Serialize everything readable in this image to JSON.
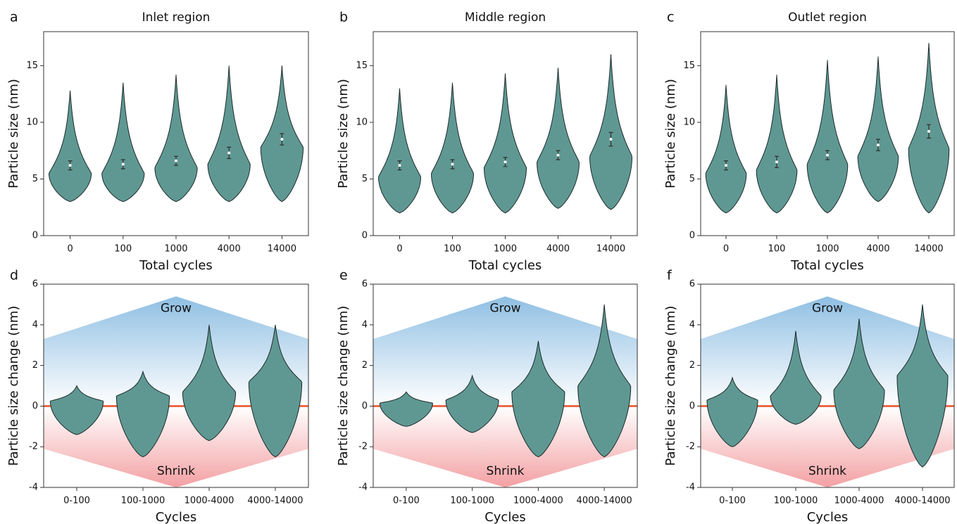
{
  "chart_data": [
    {
      "type": "violin",
      "panel": "a",
      "title": "Inlet region",
      "xlabel": "Total cycles",
      "ylabel": "Particle size (nm)",
      "color": "#5f9893",
      "categories": [
        "0",
        "100",
        "1000",
        "4000",
        "14000"
      ],
      "ylim": [
        0,
        18
      ],
      "yticks": [
        0,
        5,
        10,
        15
      ],
      "violins": [
        {
          "min": 3,
          "max": 12.8,
          "mode": 5.5,
          "mean": 6.2,
          "err": 0.4
        },
        {
          "min": 3,
          "max": 13.5,
          "mode": 5.5,
          "mean": 6.3,
          "err": 0.4
        },
        {
          "min": 3,
          "max": 14.2,
          "mode": 6,
          "mean": 6.6,
          "err": 0.4
        },
        {
          "min": 3,
          "max": 15,
          "mode": 6.3,
          "mean": 7.3,
          "err": 0.5
        },
        {
          "min": 3,
          "max": 15,
          "mode": 7.8,
          "mean": 8.5,
          "err": 0.5
        }
      ]
    },
    {
      "type": "violin",
      "panel": "b",
      "title": "Middle region",
      "xlabel": "Total cycles",
      "ylabel": "Particle size (nm)",
      "color": "#5f9893",
      "categories": [
        "0",
        "100",
        "1000",
        "4000",
        "14000"
      ],
      "ylim": [
        0,
        18
      ],
      "yticks": [
        0,
        5,
        10,
        15
      ],
      "violins": [
        {
          "min": 2,
          "max": 13,
          "mode": 5.2,
          "mean": 6.2,
          "err": 0.4
        },
        {
          "min": 2,
          "max": 13.5,
          "mode": 5.5,
          "mean": 6.3,
          "err": 0.4
        },
        {
          "min": 2,
          "max": 14.3,
          "mode": 6,
          "mean": 6.5,
          "err": 0.4
        },
        {
          "min": 2.4,
          "max": 14.8,
          "mode": 6.5,
          "mean": 7.1,
          "err": 0.4
        },
        {
          "min": 2.3,
          "max": 16,
          "mode": 7,
          "mean": 8.5,
          "err": 0.6
        }
      ]
    },
    {
      "type": "violin",
      "panel": "c",
      "title": "Outlet region",
      "xlabel": "Total cycles",
      "ylabel": "Particle size (nm)",
      "color": "#5f9893",
      "categories": [
        "0",
        "100",
        "1000",
        "4000",
        "14000"
      ],
      "ylim": [
        0,
        18
      ],
      "yticks": [
        0,
        5,
        10,
        15
      ],
      "violins": [
        {
          "min": 2,
          "max": 13.3,
          "mode": 5.5,
          "mean": 6.2,
          "err": 0.4
        },
        {
          "min": 2,
          "max": 14.2,
          "mode": 5.8,
          "mean": 6.5,
          "err": 0.5
        },
        {
          "min": 2,
          "max": 15.5,
          "mode": 6.3,
          "mean": 7.1,
          "err": 0.4
        },
        {
          "min": 3,
          "max": 15.8,
          "mode": 7,
          "mean": 8,
          "err": 0.5
        },
        {
          "min": 2,
          "max": 17,
          "mode": 7.7,
          "mean": 9.2,
          "err": 0.6
        }
      ]
    },
    {
      "type": "violin",
      "panel": "d",
      "xlabel": "Cycles",
      "ylabel": "Particle size change (nm)",
      "color": "#5f9893",
      "zero_line_color": "#e8522a",
      "grow_label": "Grow",
      "shrink_label": "Shrink",
      "categories": [
        "0-100",
        "100-1000",
        "1000-4000",
        "4000-14000"
      ],
      "ylim": [
        -4,
        6
      ],
      "yticks": [
        -4,
        -2,
        0,
        2,
        4,
        6
      ],
      "violins": [
        {
          "min": -1.4,
          "max": 1,
          "mode": 0.25
        },
        {
          "min": -2.5,
          "max": 1.7,
          "mode": 0.5
        },
        {
          "min": -1.7,
          "max": 4,
          "mode": 0.7
        },
        {
          "min": -2.5,
          "max": 4,
          "mode": 1.2
        }
      ]
    },
    {
      "type": "violin",
      "panel": "e",
      "xlabel": "Cycles",
      "ylabel": "Particle size change (nm)",
      "color": "#5f9893",
      "zero_line_color": "#e8522a",
      "grow_label": "Grow",
      "shrink_label": "Shrink",
      "categories": [
        "0-100",
        "100-1000",
        "1000-4000",
        "4000-14000"
      ],
      "ylim": [
        -4,
        6
      ],
      "yticks": [
        -4,
        -2,
        0,
        2,
        4,
        6
      ],
      "violins": [
        {
          "min": -1,
          "max": 0.7,
          "mode": 0.15
        },
        {
          "min": -1.3,
          "max": 1.5,
          "mode": 0.3
        },
        {
          "min": -2.5,
          "max": 3.2,
          "mode": 0.7
        },
        {
          "min": -2.5,
          "max": 5,
          "mode": 1
        }
      ]
    },
    {
      "type": "violin",
      "panel": "f",
      "xlabel": "Cycles",
      "ylabel": "Particle size change (nm)",
      "color": "#5f9893",
      "zero_line_color": "#e8522a",
      "grow_label": "Grow",
      "shrink_label": "Shrink",
      "categories": [
        "0-100",
        "100-1000",
        "1000-4000",
        "4000-14000"
      ],
      "ylim": [
        -4,
        6
      ],
      "yticks": [
        -4,
        -2,
        0,
        2,
        4,
        6
      ],
      "violins": [
        {
          "min": -2,
          "max": 1.4,
          "mode": 0.3
        },
        {
          "min": -0.9,
          "max": 3.7,
          "mode": 0.5
        },
        {
          "min": -2.1,
          "max": 4.3,
          "mode": 0.8
        },
        {
          "min": -3,
          "max": 5,
          "mode": 1.5
        }
      ]
    }
  ]
}
